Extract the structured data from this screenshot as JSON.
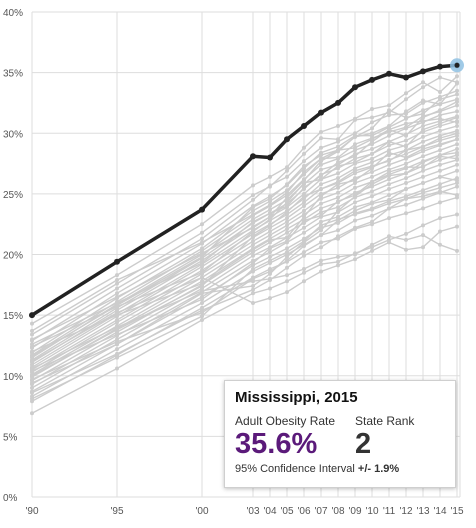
{
  "chart_data": {
    "type": "line",
    "title": "",
    "xlabel": "",
    "ylabel": "",
    "x_ticks": [
      "'90",
      "'95",
      "'00",
      "'03",
      "'04",
      "'05",
      "'06",
      "'07",
      "'08",
      "'09",
      "'10",
      "'11",
      "'12",
      "'13",
      "'14",
      "'15"
    ],
    "y_ticks": [
      "0%",
      "5%",
      "10%",
      "15%",
      "20%",
      "25%",
      "30%",
      "35%",
      "40%"
    ],
    "ylim": [
      0,
      40
    ],
    "grid": true,
    "highlight_color": "#222222",
    "background_color": "#cccccc",
    "highlight_marker_color": "#8fc1e3",
    "highlight_series": {
      "name": "Mississippi",
      "values": [
        15.0,
        19.4,
        23.7,
        28.1,
        28.0,
        29.5,
        30.6,
        31.7,
        32.5,
        33.8,
        34.4,
        34.9,
        34.6,
        35.1,
        35.5,
        35.6
      ]
    },
    "other_series": [
      {
        "values": [
          14.3,
          18.3,
          22.5,
          25.7,
          26.4,
          27.2,
          28.8,
          30.1,
          30.6,
          31.2,
          32.0,
          32.3,
          33.3,
          34.2,
          33.4,
          34.7
        ]
      },
      {
        "values": [
          13.4,
          17.6,
          21.8,
          24.9,
          25.6,
          26.9,
          28.3,
          29.6,
          29.5,
          31.1,
          31.3,
          31.7,
          32.8,
          33.8,
          34.6,
          34.2
        ]
      },
      {
        "values": [
          12.9,
          17.2,
          21.3,
          24.5,
          25.7,
          26.4,
          27.7,
          28.8,
          29.3,
          30.0,
          30.9,
          31.5,
          31.6,
          32.5,
          33.0,
          33.5
        ]
      },
      {
        "values": [
          12.3,
          16.8,
          20.9,
          24.0,
          24.8,
          25.7,
          27.1,
          28.4,
          28.9,
          29.8,
          29.8,
          30.5,
          31.2,
          31.9,
          32.4,
          32.8
        ]
      },
      {
        "values": [
          11.9,
          16.4,
          20.5,
          23.6,
          24.4,
          25.3,
          26.6,
          27.9,
          28.0,
          29.1,
          29.6,
          30.1,
          30.5,
          31.4,
          31.8,
          32.3
        ]
      },
      {
        "values": [
          11.7,
          16.1,
          20.3,
          23.2,
          24.0,
          24.9,
          26.2,
          27.4,
          27.9,
          28.6,
          29.1,
          29.8,
          30.4,
          30.9,
          31.5,
          31.8
        ]
      },
      {
        "values": [
          11.5,
          15.9,
          20.0,
          22.9,
          23.7,
          24.5,
          25.8,
          27.0,
          27.4,
          28.3,
          28.7,
          29.3,
          29.9,
          30.6,
          31.0,
          31.4
        ]
      },
      {
        "values": [
          11.3,
          15.6,
          19.7,
          22.6,
          23.4,
          24.2,
          25.4,
          26.6,
          27.1,
          27.9,
          28.3,
          29.0,
          29.4,
          30.1,
          30.6,
          31.0
        ]
      },
      {
        "values": [
          11.1,
          15.4,
          19.5,
          22.3,
          23.1,
          23.9,
          25.0,
          26.2,
          26.7,
          27.5,
          27.9,
          28.6,
          29.0,
          29.7,
          30.2,
          30.6
        ]
      },
      {
        "values": [
          10.9,
          15.1,
          19.2,
          22.0,
          22.8,
          23.6,
          24.6,
          25.8,
          26.3,
          27.1,
          27.6,
          28.2,
          28.6,
          29.3,
          29.8,
          30.2
        ]
      },
      {
        "values": [
          10.7,
          14.9,
          19.0,
          21.7,
          22.5,
          23.3,
          24.3,
          25.4,
          25.9,
          26.7,
          27.2,
          27.8,
          28.3,
          28.9,
          29.4,
          29.8
        ]
      },
      {
        "values": [
          10.5,
          14.6,
          18.7,
          21.4,
          22.2,
          23.0,
          24.0,
          25.0,
          25.5,
          26.3,
          26.8,
          27.4,
          27.9,
          28.5,
          29.0,
          29.5
        ]
      },
      {
        "values": [
          10.3,
          14.4,
          18.4,
          21.1,
          21.9,
          22.7,
          23.6,
          24.6,
          25.1,
          25.9,
          26.4,
          27.0,
          27.5,
          28.1,
          28.6,
          29.1
        ]
      },
      {
        "values": [
          10.1,
          14.1,
          18.1,
          20.8,
          21.6,
          22.4,
          23.3,
          24.2,
          24.7,
          25.5,
          26.0,
          26.6,
          27.1,
          27.7,
          28.2,
          28.7
        ]
      },
      {
        "values": [
          9.9,
          13.9,
          17.8,
          20.5,
          21.3,
          22.1,
          22.9,
          23.8,
          24.3,
          25.1,
          25.6,
          26.2,
          26.7,
          27.3,
          27.8,
          28.2
        ]
      },
      {
        "values": [
          9.6,
          13.6,
          17.5,
          20.2,
          21.0,
          21.8,
          22.6,
          23.5,
          23.9,
          24.7,
          25.2,
          25.8,
          26.3,
          26.9,
          27.4,
          27.8
        ]
      },
      {
        "values": [
          9.3,
          13.3,
          17.2,
          19.9,
          20.6,
          21.4,
          22.2,
          23.1,
          23.5,
          24.3,
          24.8,
          25.4,
          25.9,
          26.4,
          26.9,
          27.4
        ]
      },
      {
        "values": [
          9.0,
          13.0,
          16.9,
          19.5,
          20.2,
          21.0,
          21.8,
          22.7,
          23.1,
          23.9,
          24.3,
          24.9,
          25.4,
          25.9,
          26.4,
          26.9
        ]
      },
      {
        "values": [
          8.7,
          12.6,
          16.5,
          19.1,
          19.8,
          20.5,
          21.3,
          22.2,
          22.6,
          23.4,
          23.8,
          24.4,
          24.8,
          25.3,
          25.8,
          26.3
        ]
      },
      {
        "values": [
          8.3,
          12.2,
          16.0,
          18.6,
          19.3,
          20.0,
          20.8,
          21.6,
          22.0,
          22.8,
          23.2,
          23.8,
          24.1,
          24.6,
          25.1,
          25.6
        ]
      },
      {
        "values": [
          7.9,
          11.7,
          15.6,
          18.1,
          18.8,
          19.4,
          20.2,
          21.0,
          21.3,
          22.1,
          22.5,
          23.0,
          23.4,
          23.8,
          24.3,
          24.7
        ]
      },
      {
        "values": [
          6.9,
          10.6,
          14.6,
          16.8,
          17.2,
          17.8,
          18.5,
          19.2,
          19.4,
          20.1,
          20.6,
          21.2,
          21.7,
          22.4,
          23.0,
          23.3
        ]
      },
      {
        "values": [
          12.0,
          15.0,
          17.6,
          20.4,
          21.2,
          21.4,
          23.1,
          24.8,
          25.8,
          26.1,
          27.1,
          28.4,
          28.0,
          28.7,
          29.1,
          29.5
        ]
      },
      {
        "values": [
          10.4,
          13.4,
          16.3,
          19.3,
          20.5,
          21.1,
          22.8,
          23.2,
          24.4,
          24.9,
          26.0,
          26.8,
          27.2,
          27.2,
          28.1,
          27.9
        ]
      },
      {
        "values": [
          9.7,
          12.8,
          15.2,
          18.0,
          18.6,
          19.5,
          20.7,
          21.6,
          22.8,
          23.6,
          24.2,
          24.5,
          25.4,
          25.9,
          26.4,
          26.1
        ]
      },
      {
        "values": [
          8.6,
          11.8,
          15.4,
          17.1,
          17.9,
          18.9,
          19.9,
          20.6,
          21.5,
          22.2,
          22.7,
          23.8,
          24.6,
          25.1,
          25.5,
          25.9
        ]
      },
      {
        "values": [
          10.6,
          14.0,
          17.0,
          17.8,
          18.0,
          18.3,
          18.8,
          19.5,
          19.8,
          20.0,
          20.8,
          21.5,
          21.2,
          21.6,
          20.8,
          20.3
        ]
      },
      {
        "values": [
          11.2,
          15.2,
          18.1,
          16.0,
          16.4,
          16.9,
          17.8,
          18.6,
          19.1,
          19.6,
          20.3,
          21.0,
          20.4,
          20.6,
          21.9,
          22.3
        ]
      },
      {
        "values": [
          9.4,
          12.6,
          16.8,
          17.4,
          18.4,
          19.8,
          21.0,
          22.0,
          23.6,
          24.8,
          25.8,
          26.5,
          26.7,
          27.6,
          28.2,
          28.4
        ]
      },
      {
        "values": [
          13.0,
          16.5,
          20.1,
          22.2,
          23.1,
          24.7,
          26.1,
          27.7,
          28.5,
          29.7,
          30.4,
          31.9,
          31.3,
          31.6,
          32.8,
          33.2
        ]
      },
      {
        "values": [
          12.6,
          16.0,
          19.3,
          22.7,
          23.4,
          24.0,
          25.5,
          26.5,
          27.6,
          28.1,
          29.3,
          30.3,
          30.8,
          31.0,
          31.2,
          30.9
        ]
      },
      {
        "values": [
          11.6,
          15.8,
          19.8,
          23.9,
          24.6,
          25.8,
          27.3,
          28.2,
          28.6,
          29.7,
          30.0,
          30.6,
          31.8,
          32.7,
          32.4,
          34.1
        ]
      },
      {
        "values": [
          10.0,
          13.8,
          17.4,
          21.5,
          22.4,
          23.5,
          24.8,
          25.4,
          26.0,
          26.9,
          27.3,
          27.7,
          28.6,
          28.9,
          29.6,
          30.0
        ]
      },
      {
        "values": [
          8.1,
          11.5,
          14.9,
          18.8,
          19.5,
          20.2,
          21.1,
          22.4,
          22.9,
          23.3,
          23.7,
          24.2,
          24.6,
          24.8,
          25.2,
          24.9
        ]
      },
      {
        "values": [
          13.7,
          17.9,
          21.0,
          23.3,
          24.1,
          25.1,
          26.8,
          27.9,
          28.6,
          28.8,
          29.5,
          30.3,
          29.8,
          31.3,
          31.9,
          32.6
        ]
      },
      {
        "values": [
          12.4,
          15.7,
          18.5,
          21.9,
          22.9,
          24.3,
          25.9,
          26.2,
          27.3,
          27.6,
          28.3,
          29.3,
          28.9,
          30.3,
          30.8,
          31.3
        ]
      }
    ]
  },
  "tooltip": {
    "state_year": "Mississippi, 2015",
    "rate_label": "Adult Obesity Rate",
    "rate_value": "35.6%",
    "rank_label": "State Rank",
    "rank_value": "2",
    "ci_label": "95% Confidence Interval",
    "ci_value": "+/- 1.9%"
  }
}
